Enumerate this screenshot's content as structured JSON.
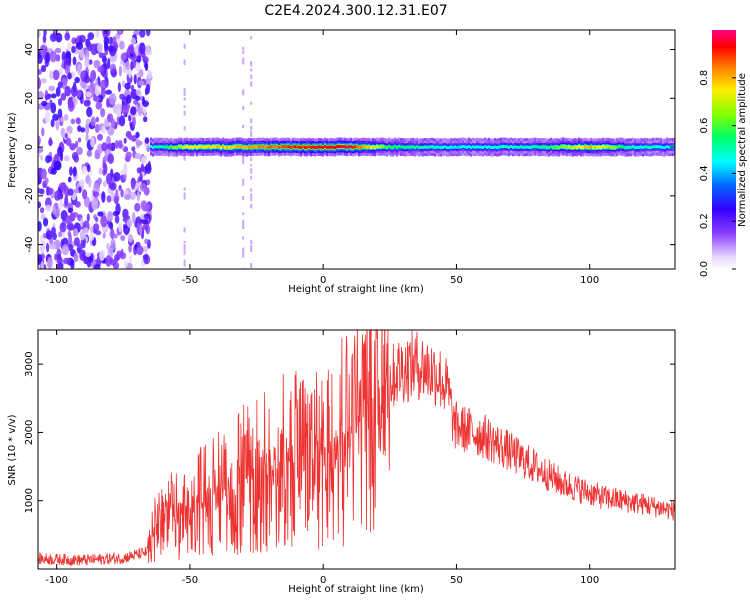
{
  "title": "C2E4.2024.300.12.31.E07",
  "colors": {
    "snr_line": "#ee3333",
    "background": "#ffffff",
    "axis": "#000000",
    "colormap": [
      "#ffffff",
      "#bb88ff",
      "#6a00ff",
      "#0000ff",
      "#00ffff",
      "#00ff00",
      "#ffff00",
      "#ff8800",
      "#ff0000",
      "#ff00aa"
    ]
  },
  "chart_data": [
    {
      "type": "heatmap",
      "title": "C2E4.2024.300.12.31.E07",
      "xlabel": "Height of straight line (km)",
      "ylabel": "Frequency (Hz)",
      "xlim": [
        -107,
        132
      ],
      "ylim": [
        -50,
        48
      ],
      "x_ticks": [
        -100,
        -50,
        0,
        50,
        100
      ],
      "y_ticks": [
        -40,
        -20,
        0,
        20,
        40
      ],
      "grid": false,
      "colorbar": {
        "label": "Normalized spectral amplitude",
        "range": [
          0,
          1
        ],
        "ticks": [
          0.0,
          0.2,
          0.4,
          0.6,
          0.8
        ]
      },
      "features": {
        "noise_region_x": [
          -107,
          -65
        ],
        "signal_onset_x": -65,
        "signal_center_freq": 0,
        "signal_profile": [
          {
            "x": -64,
            "amp": 0.45
          },
          {
            "x": -50,
            "amp": 0.75
          },
          {
            "x": -30,
            "amp": 0.8
          },
          {
            "x": -12,
            "amp": 0.9
          },
          {
            "x": 0,
            "amp": 0.95
          },
          {
            "x": 10,
            "amp": 0.95
          },
          {
            "x": 25,
            "amp": 0.55
          },
          {
            "x": 50,
            "amp": 0.45
          },
          {
            "x": 80,
            "amp": 0.5
          },
          {
            "x": 100,
            "amp": 0.8
          },
          {
            "x": 115,
            "amp": 0.5
          },
          {
            "x": 132,
            "amp": 0.45
          }
        ]
      }
    },
    {
      "type": "line",
      "xlabel": "Height of straight line (km)",
      "ylabel": "SNR (10 * v/v)",
      "xlim": [
        -107,
        132
      ],
      "ylim": [
        0,
        3500
      ],
      "x_ticks": [
        -100,
        -50,
        0,
        50,
        100
      ],
      "y_ticks": [
        1000,
        2000,
        3000
      ],
      "grid": false,
      "series": [
        {
          "points": [
            [
              -107,
              150
            ],
            [
              -90,
              130
            ],
            [
              -75,
              160
            ],
            [
              -66,
              250
            ],
            [
              -62,
              700
            ],
            [
              -55,
              800
            ],
            [
              -45,
              1000
            ],
            [
              -35,
              1200
            ],
            [
              -25,
              1400
            ],
            [
              -15,
              1550
            ],
            [
              -5,
              1650
            ],
            [
              0,
              1800
            ],
            [
              10,
              2100
            ],
            [
              20,
              2550
            ],
            [
              28,
              2900
            ],
            [
              35,
              3000
            ],
            [
              43,
              2850
            ],
            [
              47,
              2600
            ],
            [
              49,
              2100
            ],
            [
              60,
              1950
            ],
            [
              75,
              1600
            ],
            [
              90,
              1250
            ],
            [
              105,
              1050
            ],
            [
              120,
              950
            ],
            [
              132,
              850
            ]
          ]
        }
      ]
    }
  ]
}
